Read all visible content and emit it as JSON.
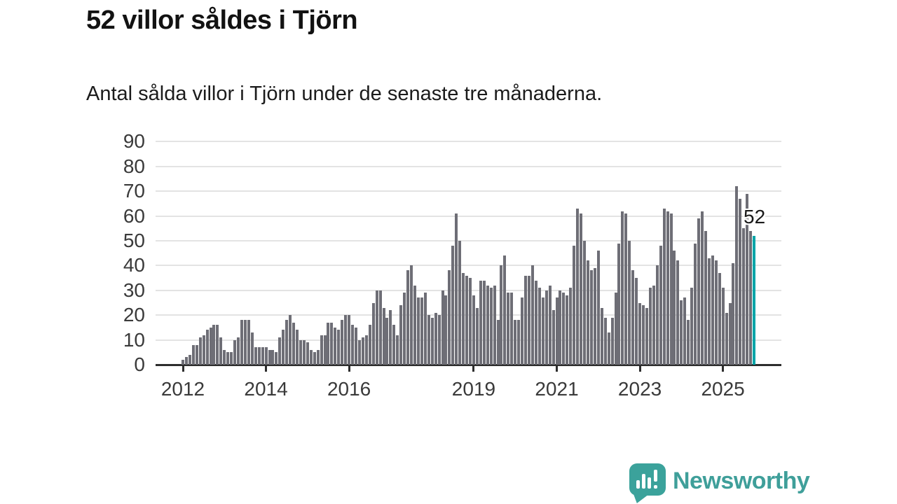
{
  "header": {
    "title": "52 villor såldes i Tjörn",
    "subtitle": "Antal sålda villor i Tjörn under de senaste tre månaderna."
  },
  "annotation": {
    "last_value_label": "52"
  },
  "footer": {
    "brand": "Newsworthy"
  },
  "colors": {
    "bar": "#6e6e76",
    "highlight": "#00a5a8",
    "axis": "#2d2d2d",
    "gridline": "#e3e3e3",
    "tick_text": "#3a3a3a",
    "logo_teal": "#3ba29b"
  },
  "chart_data": {
    "type": "bar",
    "title": "52 villor såldes i Tjörn",
    "xlabel": "",
    "ylabel": "",
    "x_start_month": "2012-01",
    "x_end_month": "2025-10",
    "ylim": [
      0,
      90
    ],
    "yticks": [
      0,
      10,
      20,
      30,
      40,
      50,
      60,
      70,
      80,
      90
    ],
    "grid": true,
    "legend": false,
    "highlight_index": 165,
    "highlight_value": 52,
    "xticks": [
      {
        "label": "2012",
        "month_index": 0
      },
      {
        "label": "2014",
        "month_index": 24
      },
      {
        "label": "2016",
        "month_index": 48
      },
      {
        "label": "2019",
        "month_index": 84
      },
      {
        "label": "2021",
        "month_index": 108
      },
      {
        "label": "2023",
        "month_index": 132
      },
      {
        "label": "2025",
        "month_index": 156
      }
    ],
    "values": [
      2,
      3,
      4,
      8,
      8,
      11,
      12,
      14,
      15,
      16,
      16,
      11,
      6,
      5,
      5,
      10,
      11,
      18,
      18,
      18,
      13,
      7,
      7,
      7,
      7,
      6,
      6,
      5,
      11,
      14,
      18,
      20,
      17,
      14,
      10,
      10,
      9,
      6,
      5,
      6,
      12,
      12,
      17,
      17,
      15,
      14,
      18,
      20,
      20,
      16,
      15,
      10,
      11,
      12,
      16,
      25,
      30,
      30,
      23,
      19,
      22,
      16,
      12,
      24,
      29,
      38,
      40,
      32,
      27,
      27,
      29,
      20,
      19,
      21,
      20,
      30,
      28,
      38,
      48,
      61,
      50,
      37,
      36,
      35,
      28,
      23,
      34,
      34,
      32,
      31,
      32,
      18,
      40,
      44,
      29,
      29,
      18,
      18,
      27,
      36,
      36,
      40,
      34,
      31,
      27,
      30,
      32,
      22,
      27,
      30,
      29,
      28,
      31,
      48,
      63,
      61,
      50,
      42,
      38,
      39,
      46,
      23,
      19,
      13,
      19,
      29,
      49,
      62,
      61,
      50,
      38,
      35,
      25,
      24,
      23,
      31,
      32,
      40,
      48,
      63,
      62,
      61,
      46,
      42,
      26,
      27,
      18,
      31,
      49,
      59,
      62,
      54,
      43,
      44,
      42,
      37,
      31,
      21,
      25,
      41,
      72,
      67,
      55,
      69,
      54,
      52
    ]
  }
}
